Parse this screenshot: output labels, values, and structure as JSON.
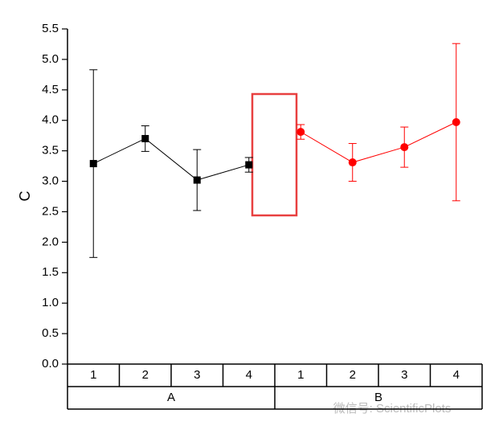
{
  "chart_data": {
    "type": "line",
    "ylabel": "C",
    "ylim": [
      0,
      5.5
    ],
    "yticks": [
      {
        "value": 0,
        "label": "0.0"
      },
      {
        "value": 0.5,
        "label": "0.5"
      },
      {
        "value": 1,
        "label": "1.0"
      },
      {
        "value": 1.5,
        "label": "1.5"
      },
      {
        "value": 2,
        "label": "2.0"
      },
      {
        "value": 2.5,
        "label": "2.5"
      },
      {
        "value": 3,
        "label": "3.0"
      },
      {
        "value": 3.5,
        "label": "3.5"
      },
      {
        "value": 4,
        "label": "4.0"
      },
      {
        "value": 4.5,
        "label": "4.5"
      },
      {
        "value": 5,
        "label": "5.0"
      },
      {
        "value": 5.5,
        "label": "5.5"
      }
    ],
    "series": [
      {
        "group": "A",
        "color": "#000000",
        "marker": "square",
        "categories": [
          "1",
          "2",
          "3",
          "4"
        ],
        "values": [
          3.29,
          3.7,
          3.02,
          3.27
        ],
        "errors": [
          1.54,
          0.21,
          0.5,
          0.12
        ]
      },
      {
        "group": "B",
        "color": "#ff0000",
        "marker": "circle",
        "categories": [
          "1",
          "2",
          "3",
          "4"
        ],
        "values": [
          3.81,
          3.31,
          3.56,
          3.97
        ],
        "errors": [
          0.12,
          0.31,
          0.33,
          1.29
        ]
      }
    ],
    "watermark": "微信号: ScientificPlots"
  }
}
